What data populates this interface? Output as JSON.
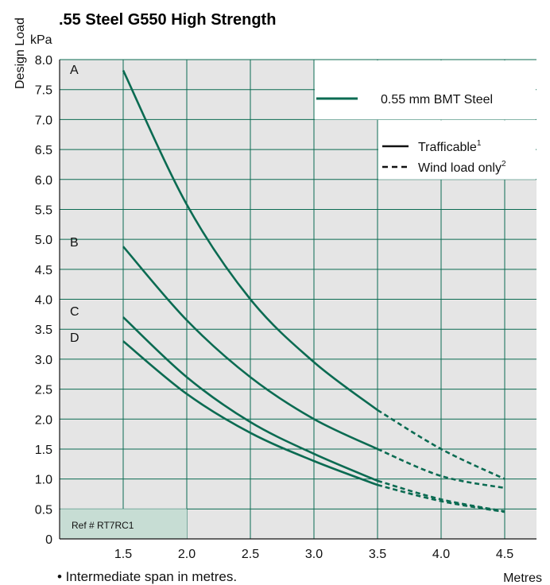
{
  "chart_data": {
    "type": "line",
    "title": ".55 Steel G550 High Strength",
    "ylabel": "Design Load",
    "yunit": "kPa",
    "xunit": "Metres",
    "xlim": [
      1.0,
      4.75
    ],
    "ylim": [
      0,
      8.0
    ],
    "x_ticks": [
      "1.5",
      "2.0",
      "2.5",
      "3.0",
      "3.5",
      "4.0",
      "4.5"
    ],
    "y_ticks": [
      "0",
      "0.5",
      "1.0",
      "1.5",
      "2.0",
      "2.5",
      "3.0",
      "3.5",
      "4.0",
      "4.5",
      "5.0",
      "5.5",
      "6.0",
      "6.5",
      "7.0",
      "7.5",
      "8.0"
    ],
    "grid": true,
    "trafficable_limit_x": 3.5,
    "series": [
      {
        "name": "A",
        "x": [
          1.5,
          2.0,
          2.5,
          3.0,
          3.5,
          4.0,
          4.5
        ],
        "y": [
          7.82,
          5.58,
          4.0,
          2.95,
          2.15,
          1.5,
          1.0
        ]
      },
      {
        "name": "B",
        "x": [
          1.5,
          2.0,
          2.5,
          3.0,
          3.5,
          4.0,
          4.5
        ],
        "y": [
          4.88,
          3.65,
          2.7,
          2.0,
          1.5,
          1.05,
          0.85
        ]
      },
      {
        "name": "C",
        "x": [
          1.5,
          2.0,
          2.5,
          3.0,
          3.5,
          4.0,
          4.5
        ],
        "y": [
          3.7,
          2.7,
          1.95,
          1.42,
          0.97,
          0.66,
          0.46
        ]
      },
      {
        "name": "D",
        "x": [
          1.5,
          2.0,
          2.5,
          3.0,
          3.5,
          4.0,
          4.5
        ],
        "y": [
          3.3,
          2.42,
          1.77,
          1.3,
          0.9,
          0.63,
          0.45
        ]
      }
    ],
    "legend": {
      "position": "top-right",
      "series_entry": "0.55 mm BMT Steel",
      "solid_entry": "Trafficable",
      "solid_sup": "1",
      "dashed_entry": "Wind load only",
      "dashed_sup": "2"
    },
    "reference": "Ref # RT7RC1",
    "note": "•  Intermediate span in metres.",
    "colors": {
      "line": "#0b6b52",
      "grid": "#0b6b52",
      "shade": "#e5e5e5",
      "ref_fill": "#c7ddd4",
      "axis": "#111111"
    }
  }
}
